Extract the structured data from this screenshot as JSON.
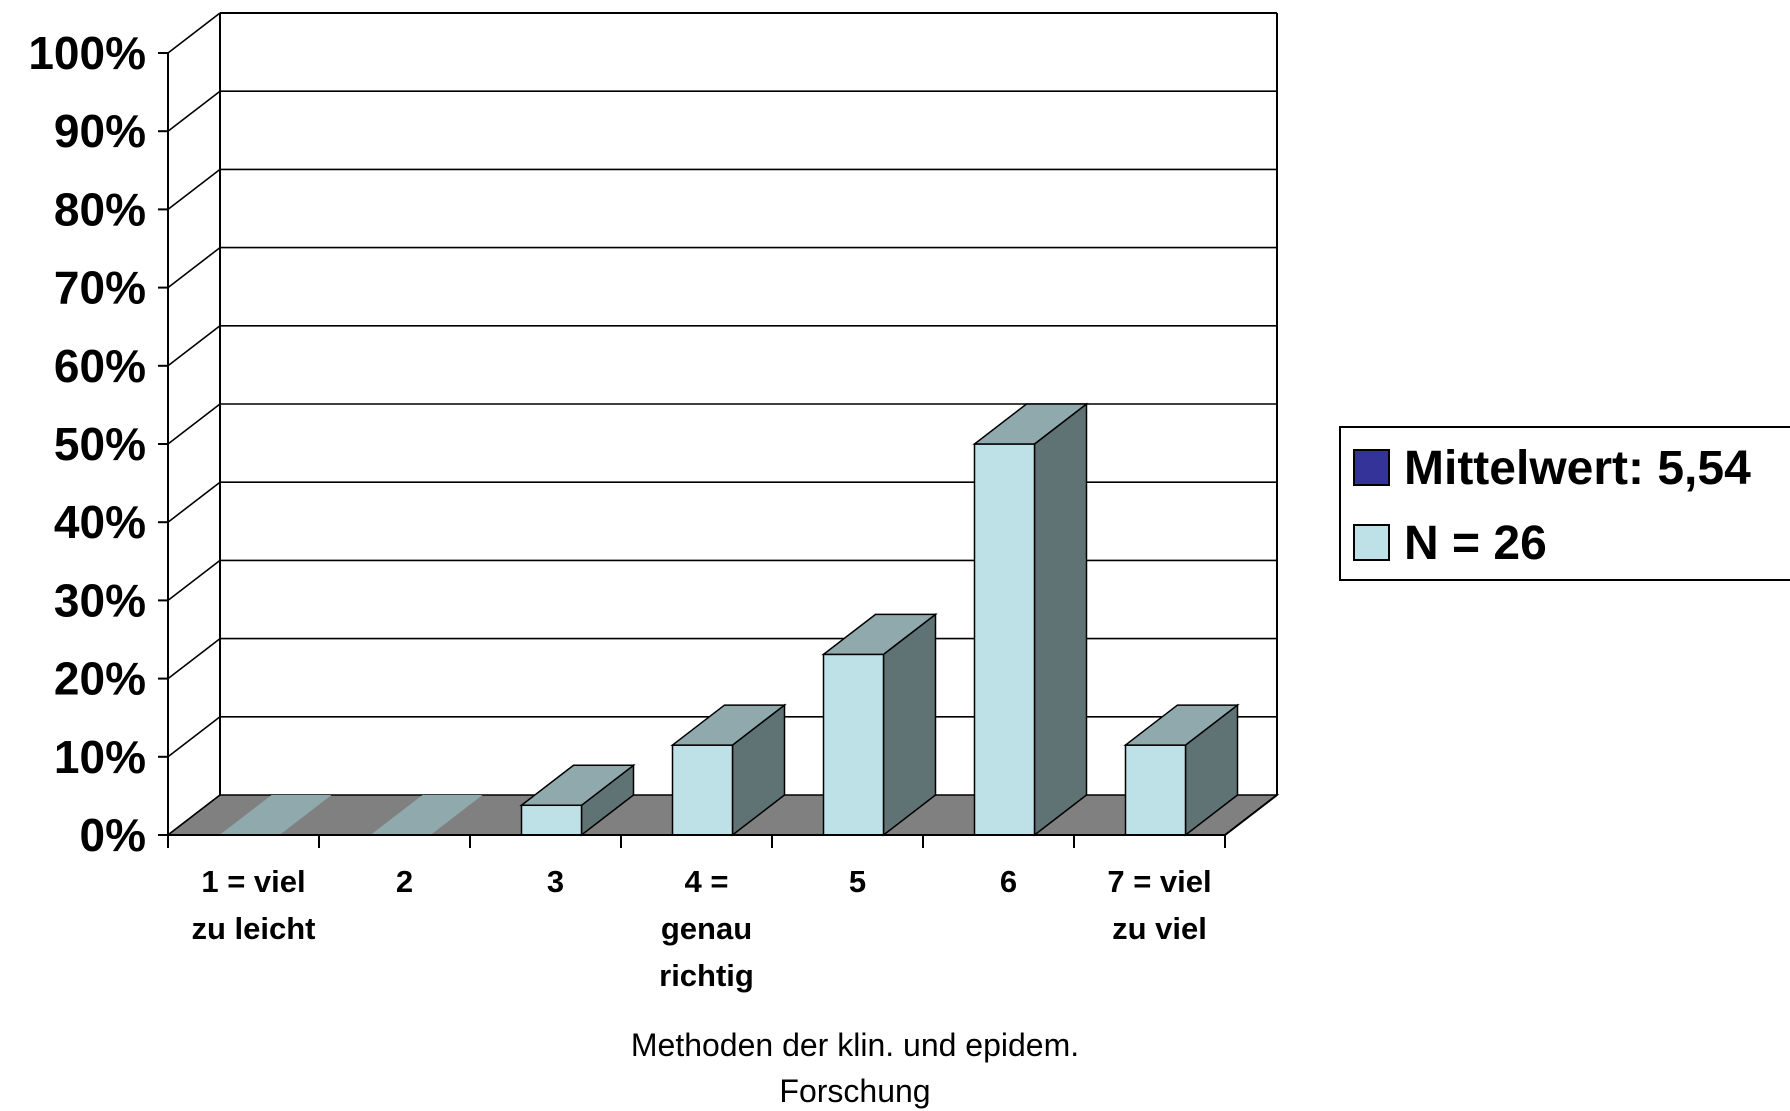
{
  "chart_data": {
    "type": "bar",
    "style": "3d-column",
    "categories": [
      [
        "1 = viel",
        "zu leicht"
      ],
      [
        "2"
      ],
      [
        "3"
      ],
      [
        "4 =",
        "genau",
        "richtig"
      ],
      [
        "5"
      ],
      [
        "6"
      ],
      [
        "7 = viel",
        "zu viel"
      ]
    ],
    "values": [
      0,
      0,
      3.8,
      11.5,
      23.1,
      50,
      11.5
    ],
    "ylim": [
      0,
      100
    ],
    "y_ticks": [
      0,
      10,
      20,
      30,
      40,
      50,
      60,
      70,
      80,
      90,
      100
    ],
    "y_tick_suffix": "%",
    "xlabel": [
      "Methoden der klin. und epidem.",
      "Forschung"
    ],
    "ylabel": "",
    "title": "",
    "grid": true,
    "legend": {
      "position": "right",
      "entries": [
        {
          "label": "Mittelwert: 5,54",
          "color": "#333399"
        },
        {
          "label": "N = 26",
          "color": "#bde1e6"
        }
      ]
    },
    "colors": {
      "bar_front": "#bde1e6",
      "bar_top": "#8fa9ad",
      "bar_side": "#5f7274",
      "floor": "#808080"
    }
  }
}
